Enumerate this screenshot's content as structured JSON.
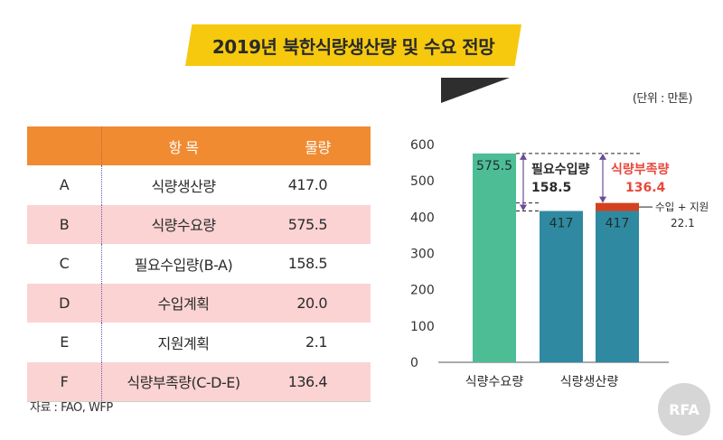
{
  "title": "2019년 북한식량생산량 및 수요 전망",
  "unit": "(단위 : 만톤)",
  "table": {
    "headers": [
      "",
      "항 목",
      "물량"
    ],
    "rows": [
      {
        "code": "A",
        "item": "식량생산량",
        "amount": "417.0"
      },
      {
        "code": "B",
        "item": "식량수요량",
        "amount": "575.5"
      },
      {
        "code": "C",
        "item": "필요수입량(B-A)",
        "amount": "158.5"
      },
      {
        "code": "D",
        "item": "수입계획",
        "amount": "20.0"
      },
      {
        "code": "E",
        "item": "지원계획",
        "amount": "2.1"
      },
      {
        "code": "F",
        "item": "식량부족량(C-D-E)",
        "amount": "136.4"
      }
    ]
  },
  "source": "자료 : FAO, WFP",
  "logo": "RFA",
  "chart_data": {
    "type": "bar",
    "ylim": [
      0,
      600
    ],
    "yticks": [
      "0",
      "100",
      "200",
      "300",
      "400",
      "500",
      "600"
    ],
    "categories": [
      "식량수요량",
      "식량생산량"
    ],
    "bars": [
      {
        "category": "식량수요량",
        "value": 575.5,
        "label": "575.5",
        "color": "#4dbd96"
      },
      {
        "category": "식량생산량",
        "value": 417,
        "label": "417",
        "color": "#2f8aa1"
      },
      {
        "category": "식량생산량",
        "value": 417,
        "label": "417",
        "color": "#2f8aa1",
        "stack_top": 22.1,
        "stack_color": "#d4411e"
      }
    ],
    "annotations": {
      "import_needed": {
        "label": "필요수입량",
        "value": "158.5",
        "from": 417,
        "to": 575.5
      },
      "shortage": {
        "label": "식량부족량",
        "value": "136.4",
        "from": 439.1,
        "to": 575.5
      },
      "import_aid": {
        "label": "수입 + 지원",
        "value": "22.1"
      }
    },
    "colors": {
      "demand": "#4dbd96",
      "production": "#2f8aa1",
      "shortage_text": "#e8473b",
      "import_aid": "#d4411e"
    }
  }
}
